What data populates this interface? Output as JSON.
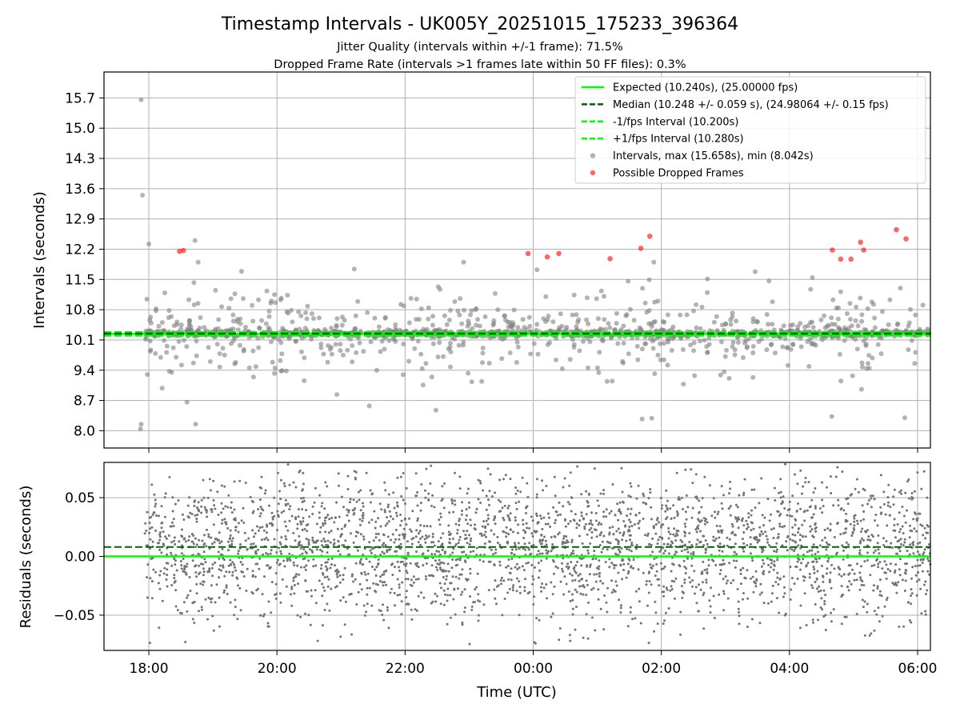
{
  "figure": {
    "title": "Timestamp Intervals - UK005Y_20251015_175233_396364",
    "subtitle_1": "Jitter Quality (intervals within +/-1 frame): 71.5%",
    "subtitle_2": "Dropped Frame Rate (intervals >1 frames late within 50 FF files): 0.3%"
  },
  "colors": {
    "expected": "#00ff00",
    "median": "#006400",
    "interval_bounds": "#00ff00",
    "intervals": "#808080",
    "dropped": "#ff0000"
  },
  "chart_data": [
    {
      "type": "scatter",
      "panel": "intervals",
      "ylabel": "Intervals (seconds)",
      "x_unit": "hours (UTC, continuing past midnight)",
      "xlim": [
        17.3,
        30.2
      ],
      "ylim": [
        7.6,
        16.3
      ],
      "yticks": [
        8.0,
        8.7,
        9.4,
        10.1,
        10.8,
        11.5,
        12.2,
        12.9,
        13.6,
        14.3,
        15.0,
        15.7
      ],
      "x_ticks": [
        18,
        20,
        22,
        24,
        26,
        28,
        30
      ],
      "grid": true,
      "legend_position": "upper-right",
      "legend": [
        {
          "key": "expected",
          "label": "Expected (10.240s), (25.00000 fps)",
          "style": "solid"
        },
        {
          "key": "median",
          "label": "Median (10.248 +/- 0.059 s), (24.98064 +/- 0.15 fps)",
          "style": "dashed"
        },
        {
          "key": "lower",
          "label": "-1/fps Interval (10.200s)",
          "style": "dashed"
        },
        {
          "key": "upper",
          "label": "+1/fps Interval (10.280s)",
          "style": "dashed"
        },
        {
          "key": "intervals",
          "label": "Intervals, max (15.658s), min (8.042s)",
          "style": "marker"
        },
        {
          "key": "dropped",
          "label": "Possible Dropped Frames",
          "style": "marker"
        }
      ],
      "reference_lines": {
        "expected": 10.24,
        "median": 10.248,
        "lower": 10.2,
        "upper": 10.28
      },
      "intervals_summary": {
        "max": 15.658,
        "min": 8.042,
        "count_approx": 1500
      },
      "dropped_frames": [
        {
          "x": 18.48,
          "y": 12.15
        },
        {
          "x": 18.54,
          "y": 12.17
        },
        {
          "x": 23.92,
          "y": 12.1
        },
        {
          "x": 24.22,
          "y": 12.02
        },
        {
          "x": 24.4,
          "y": 12.1
        },
        {
          "x": 25.2,
          "y": 11.98
        },
        {
          "x": 25.68,
          "y": 12.22
        },
        {
          "x": 25.82,
          "y": 12.5
        },
        {
          "x": 28.67,
          "y": 12.18
        },
        {
          "x": 28.8,
          "y": 11.97
        },
        {
          "x": 28.96,
          "y": 11.97
        },
        {
          "x": 29.11,
          "y": 12.36
        },
        {
          "x": 29.16,
          "y": 12.18
        },
        {
          "x": 29.67,
          "y": 12.65
        },
        {
          "x": 29.82,
          "y": 12.44
        }
      ],
      "outliers": [
        {
          "x": 17.88,
          "y": 15.658
        },
        {
          "x": 17.9,
          "y": 13.45
        },
        {
          "x": 18.0,
          "y": 12.32
        },
        {
          "x": 18.72,
          "y": 12.4
        },
        {
          "x": 17.87,
          "y": 8.042
        },
        {
          "x": 17.88,
          "y": 8.15
        },
        {
          "x": 18.73,
          "y": 8.15
        },
        {
          "x": 25.7,
          "y": 8.27
        },
        {
          "x": 25.85,
          "y": 8.29
        },
        {
          "x": 28.66,
          "y": 8.33
        },
        {
          "x": 29.8,
          "y": 8.3
        }
      ]
    },
    {
      "type": "scatter",
      "panel": "residuals",
      "ylabel": "Residuals (seconds)",
      "xlabel": "Time (UTC)",
      "xlim": [
        17.3,
        30.2
      ],
      "ylim": [
        -0.08,
        0.08
      ],
      "yticks": [
        -0.05,
        0.0,
        0.05
      ],
      "ytick_labels": [
        "−0.05",
        "0.00",
        "0.05"
      ],
      "x_ticks": [
        18,
        20,
        22,
        24,
        26,
        28,
        30
      ],
      "x_tick_labels": [
        "18:00",
        "20:00",
        "22:00",
        "00:00",
        "02:00",
        "04:00",
        "06:00"
      ],
      "grid": true,
      "reference_lines": {
        "zero": 0.0,
        "median_offset": 0.008
      },
      "residual_summary": {
        "count_approx": 3000,
        "typical_spread": 0.03
      }
    }
  ]
}
